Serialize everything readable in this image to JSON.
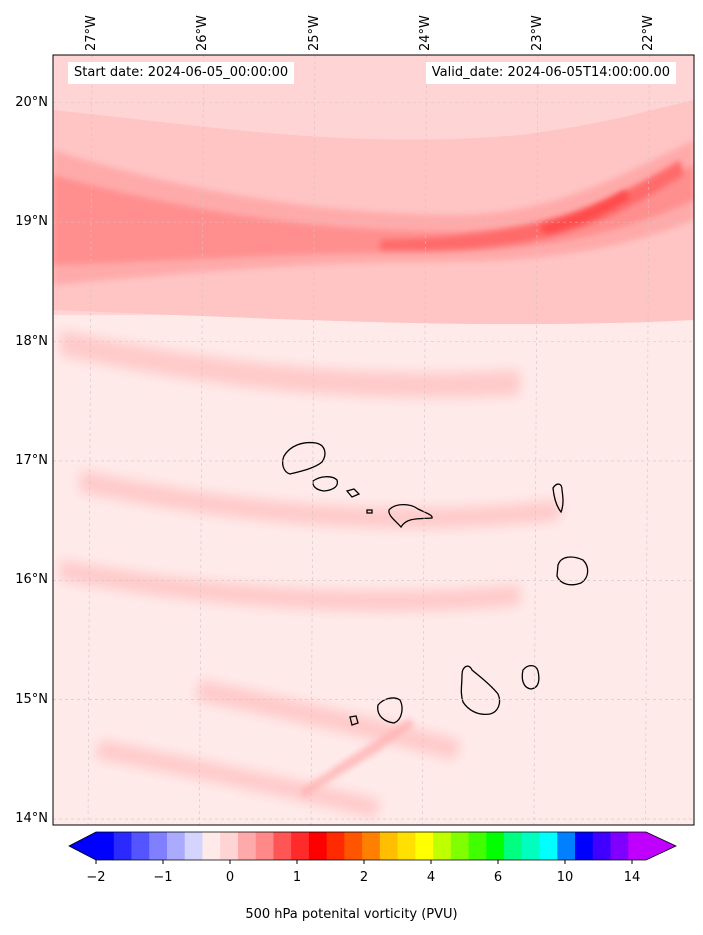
{
  "header": {
    "start_date": "Start date: 2024-06-05_00:00:00",
    "valid_date": "Valid_date: 2024-06-05T14:00:00.00"
  },
  "map": {
    "lat_labels": [
      "20°N",
      "19°N",
      "18°N",
      "17°N",
      "16°N",
      "15°N",
      "14°N"
    ],
    "lat_values": [
      20,
      19,
      18,
      17,
      16,
      15,
      14
    ],
    "lon_labels": [
      "27°W",
      "26°W",
      "25°W",
      "24°W",
      "23°W",
      "22°W"
    ],
    "lon_values": [
      -27,
      -26,
      -25,
      -24,
      -23,
      -22
    ],
    "lat_range": [
      13.95,
      20.4
    ],
    "lon_range": [
      -27.35,
      -21.6
    ],
    "grid": "dashed"
  },
  "colorbar": {
    "label": "500 hPa potenital vorticity (PVU)",
    "ticks": [
      "−2",
      "−1",
      "0",
      "1",
      "2",
      "4",
      "6",
      "10",
      "14"
    ],
    "colors": [
      "#0000ff",
      "#2a2aff",
      "#5555ff",
      "#7f7fff",
      "#aaaaff",
      "#d4d4ff",
      "#ffeaea",
      "#ffd4d4",
      "#ffaaaa",
      "#ff8888",
      "#ff5555",
      "#ff2a2a",
      "#ff0000",
      "#ff2a00",
      "#ff5500",
      "#ff8000",
      "#ffbf00",
      "#ffe000",
      "#ffff00",
      "#bfff00",
      "#80ff00",
      "#40ff00",
      "#00ff00",
      "#00ff80",
      "#00ffbf",
      "#00ffff",
      "#0080ff",
      "#0000ff",
      "#4000ff",
      "#8000ff",
      "#bf00ff"
    ]
  }
}
